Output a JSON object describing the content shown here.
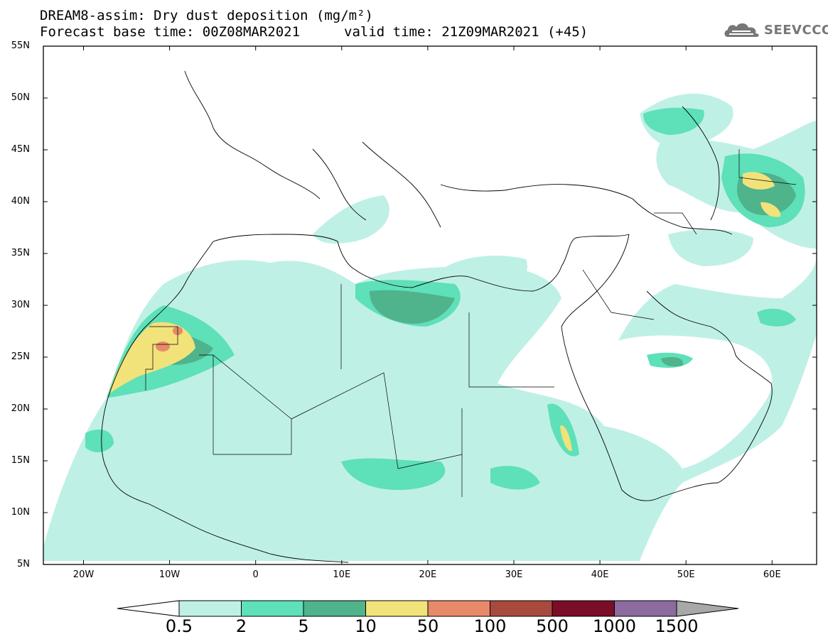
{
  "header": {
    "title_line1": "DREAM8-assim: Dry dust deposition (mg/m²)",
    "title_line2": "Forecast base time: 00Z08MAR2021",
    "valid_time": "valid time: 21Z09MAR2021 (+45)"
  },
  "logo": {
    "text": "SEEVCCC",
    "icon": "cloud-icon"
  },
  "axes": {
    "lat_labels": [
      "55N",
      "50N",
      "45N",
      "40N",
      "35N",
      "30N",
      "25N",
      "20N",
      "15N",
      "10N",
      "5N"
    ],
    "lon_labels": [
      "20W",
      "10W",
      "0",
      "10E",
      "20E",
      "30E",
      "40E",
      "50E",
      "60E"
    ]
  },
  "colorbar": {
    "labels": [
      "0.5",
      "2",
      "5",
      "10",
      "50",
      "100",
      "500",
      "1000",
      "1500"
    ],
    "colors": [
      "#bff0e6",
      "#5ee0b8",
      "#4fb38c",
      "#f2e27a",
      "#e8896a",
      "#a84a3e",
      "#7a0d28",
      "#8c6ba0",
      "#a8a8a8"
    ]
  }
}
